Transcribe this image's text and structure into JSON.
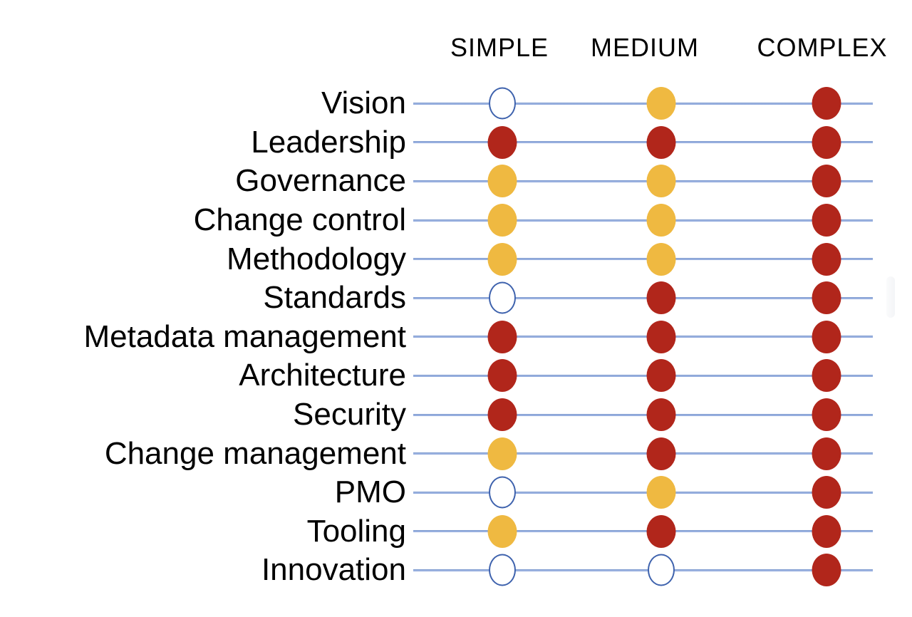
{
  "colors": {
    "background": "#ffffff",
    "text": "#000000",
    "red": "#b1261b",
    "amber": "#efb941",
    "white_dot_fill": "#ffffff",
    "circle_stroke": "#3e62ad",
    "row_line_blue": "#7f9cd6"
  },
  "chart_data": {
    "type": "table",
    "title": "",
    "subtitle": "",
    "columns": [
      "SIMPLE",
      "MEDIUM",
      "COMPLEX"
    ],
    "rows": [
      "Vision",
      "Leadership",
      "Governance",
      "Change control",
      "Methodology",
      "Standards",
      "Metadata management",
      "Architecture",
      "Security",
      "Change management",
      "PMO",
      "Tooling",
      "Innovation"
    ],
    "values": [
      [
        "white",
        "amber",
        "red"
      ],
      [
        "red",
        "red",
        "red"
      ],
      [
        "amber",
        "amber",
        "red"
      ],
      [
        "amber",
        "amber",
        "red"
      ],
      [
        "amber",
        "amber",
        "red"
      ],
      [
        "white",
        "red",
        "red"
      ],
      [
        "red",
        "red",
        "red"
      ],
      [
        "red",
        "red",
        "red"
      ],
      [
        "red",
        "red",
        "red"
      ],
      [
        "amber",
        "red",
        "red"
      ],
      [
        "white",
        "amber",
        "red"
      ],
      [
        "amber",
        "red",
        "red"
      ],
      [
        "white",
        "white",
        "red"
      ]
    ],
    "value_style_map": {
      "white": {
        "fill": "#ffffff",
        "stroke": "#3e62ad"
      },
      "amber": {
        "fill": "#efb941"
      },
      "red": {
        "fill": "#b1261b"
      }
    },
    "layout": {
      "legend_position": "none",
      "grid": "horizontal-lines-per-row",
      "row_label_alignment": "right"
    }
  }
}
